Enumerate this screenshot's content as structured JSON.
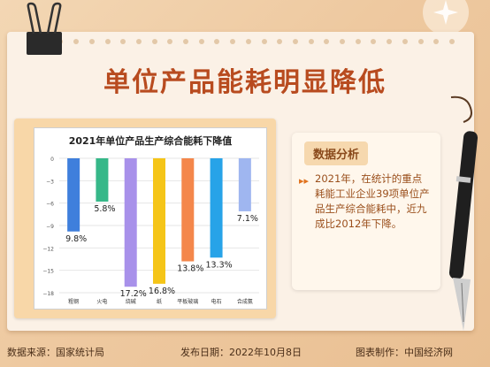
{
  "header": {
    "title": "单位产品能耗明显降低"
  },
  "panel": {
    "heading": "数据分析",
    "body": "2021年，在统计的重点耗能工业企业39项单位产品生产综合能耗中，近九成比2012年下降。"
  },
  "footer": {
    "source": "数据来源：国家统计局",
    "date": "发布日期：2022年10月8日",
    "credit": "图表制作：中国经济网"
  },
  "colors": {
    "title": "#b84b1f",
    "card": "#f8d7a8",
    "accent": "#e0731f"
  },
  "chart_data": {
    "type": "bar",
    "title": "2021年单位产品生产综合能耗下降值",
    "categories": [
      "粗钢",
      "火电",
      "烧碱",
      "纸",
      "平板玻璃",
      "电石",
      "合成氨"
    ],
    "values": [
      -9.8,
      -5.8,
      -17.2,
      -16.8,
      -13.8,
      -13.3,
      -7.1
    ],
    "labels": [
      "9.8%",
      "5.8%",
      "17.2%",
      "16.8%",
      "13.8%",
      "13.3%",
      "7.1%"
    ],
    "colors": [
      "#3f7fdc",
      "#36b889",
      "#a891ea",
      "#f5c518",
      "#f4874b",
      "#27a3e8",
      "#9fb6f0"
    ],
    "yticks": [
      0,
      -3,
      -6,
      -9,
      -12,
      -15,
      -18
    ],
    "ylim": [
      -18,
      0
    ],
    "grid": true
  }
}
